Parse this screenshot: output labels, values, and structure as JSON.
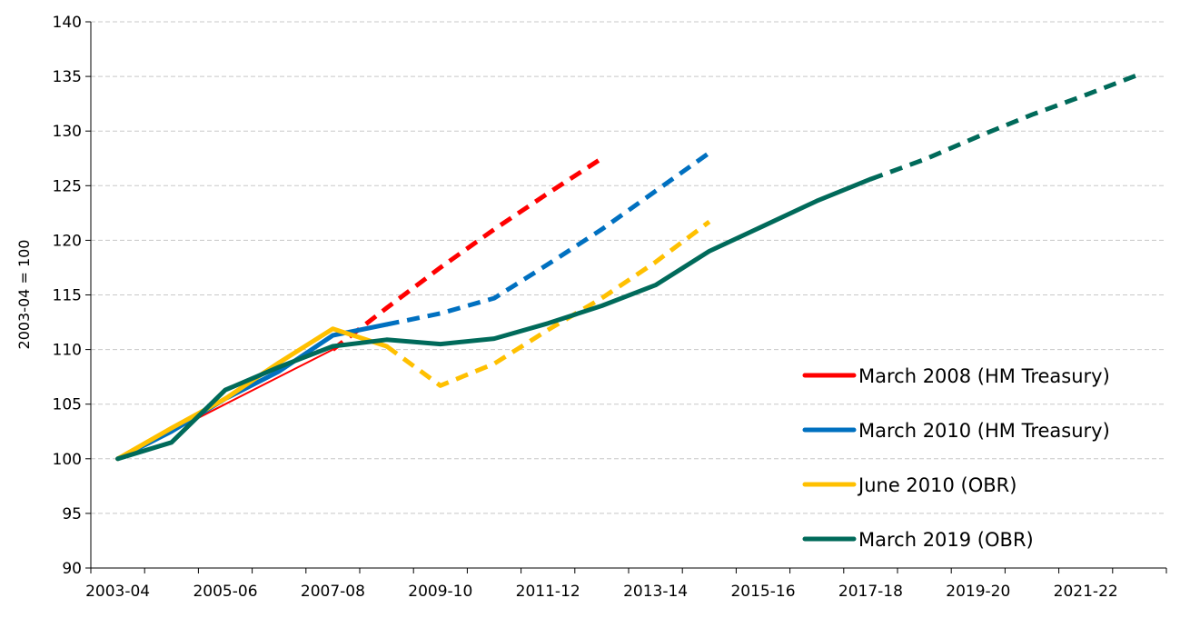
{
  "chart_data": {
    "type": "line",
    "ylabel": "2003-04 = 100",
    "ylim": [
      90,
      140
    ],
    "yticks": [
      90,
      95,
      100,
      105,
      110,
      115,
      120,
      125,
      130,
      135,
      140
    ],
    "xticks": [
      "2003-04",
      "2005-06",
      "2007-08",
      "2009-10",
      "2011-12",
      "2013-14",
      "2015-16",
      "2017-18",
      "2019-20",
      "2021-22"
    ],
    "categories": [
      "2003-04",
      "2004-05",
      "2005-06",
      "2006-07",
      "2007-08",
      "2008-09",
      "2009-10",
      "2010-11",
      "2011-12",
      "2012-13",
      "2013-14",
      "2014-15",
      "2015-16",
      "2016-17",
      "2017-18",
      "2018-19",
      "2019-20",
      "2020-21",
      "2021-22",
      "2022-23"
    ],
    "grid": "horizontal dashed",
    "legend_position": "bottom-right",
    "series": [
      {
        "name": "March 2008 (HM Treasury)",
        "color": "#ff0000",
        "values": [
          100,
          102.5,
          105,
          107.5,
          110,
          113.8,
          117.5,
          121,
          124.3,
          127.5,
          null,
          null,
          null,
          null,
          null,
          null,
          null,
          null,
          null,
          null
        ],
        "forecast_from_index": 4
      },
      {
        "name": "March 2010 (HM Treasury)",
        "color": "#0070c0",
        "values": [
          100,
          102.5,
          105.5,
          108,
          111.3,
          112.3,
          113.3,
          114.7,
          117.8,
          121,
          124.5,
          128,
          null,
          null,
          null,
          null,
          null,
          null,
          null,
          null
        ],
        "forecast_from_index": 5
      },
      {
        "name": "June 2010 (OBR)",
        "color": "#ffc000",
        "values": [
          100,
          102.8,
          105.5,
          108.8,
          111.9,
          110.3,
          106.7,
          108.7,
          111.8,
          114.7,
          118,
          121.7,
          null,
          null,
          null,
          null,
          null,
          null,
          null,
          null
        ],
        "forecast_from_index": 5
      },
      {
        "name": "March 2019 (OBR)",
        "color": "#006a5a",
        "values": [
          100,
          101.5,
          106.3,
          108.4,
          110.3,
          110.9,
          110.5,
          111,
          112.4,
          114,
          115.9,
          119,
          121.3,
          123.6,
          125.6,
          127.4,
          129.5,
          131.5,
          133.3,
          135.2
        ],
        "forecast_from_index": 14
      }
    ]
  }
}
